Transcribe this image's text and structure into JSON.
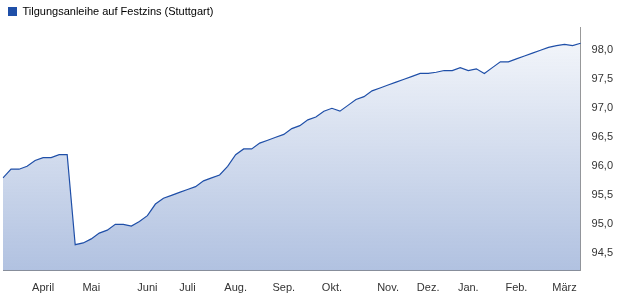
{
  "chart_data": {
    "type": "line",
    "categories": [
      null,
      null,
      null,
      null,
      null,
      "April",
      null,
      null,
      null,
      null,
      null,
      "Mai",
      null,
      null,
      null,
      null,
      null,
      null,
      "Juni",
      null,
      null,
      null,
      null,
      "Juli",
      null,
      null,
      null,
      null,
      null,
      "Aug.",
      null,
      null,
      null,
      null,
      null,
      "Sep.",
      null,
      null,
      null,
      null,
      null,
      "Okt.",
      null,
      null,
      null,
      null,
      null,
      null,
      "Nov.",
      null,
      null,
      null,
      null,
      "Dez.",
      null,
      null,
      null,
      null,
      "Jan.",
      null,
      null,
      null,
      null,
      null,
      "Feb.",
      null,
      null,
      null,
      null,
      null,
      "März",
      null,
      null
    ],
    "series": [
      {
        "name": "Tilgungsanleihe auf Festzins (Stuttgart)",
        "color": "#1f4fa8",
        "values": [
          95.8,
          95.95,
          95.95,
          96.0,
          96.1,
          96.15,
          96.15,
          96.2,
          96.2,
          94.65,
          94.68,
          94.75,
          94.85,
          94.9,
          95.0,
          95.0,
          94.97,
          95.05,
          95.15,
          95.35,
          95.45,
          95.5,
          95.55,
          95.6,
          95.65,
          95.75,
          95.8,
          95.85,
          96.0,
          96.2,
          96.3,
          96.3,
          96.4,
          96.45,
          96.5,
          96.55,
          96.65,
          96.7,
          96.8,
          96.85,
          96.95,
          97.0,
          96.95,
          97.05,
          97.15,
          97.2,
          97.3,
          97.35,
          97.4,
          97.45,
          97.5,
          97.55,
          97.6,
          97.6,
          97.62,
          97.65,
          97.65,
          97.7,
          97.65,
          97.68,
          97.6,
          97.7,
          97.8,
          97.8,
          97.85,
          97.9,
          97.95,
          98.0,
          98.05,
          98.08,
          98.1,
          98.08,
          98.12
        ]
      }
    ],
    "ylim": [
      94.2,
      98.4
    ],
    "yticks": [
      {
        "value": 94.5,
        "label": "94,5"
      },
      {
        "value": 95.0,
        "label": "95,0"
      },
      {
        "value": 95.5,
        "label": "95,5"
      },
      {
        "value": 96.0,
        "label": "96,0"
      },
      {
        "value": 96.5,
        "label": "96,5"
      },
      {
        "value": 97.0,
        "label": "97,0"
      },
      {
        "value": 97.5,
        "label": "97,5"
      },
      {
        "value": 98.0,
        "label": "98,0"
      }
    ],
    "grid": false,
    "legend": "top-left"
  }
}
